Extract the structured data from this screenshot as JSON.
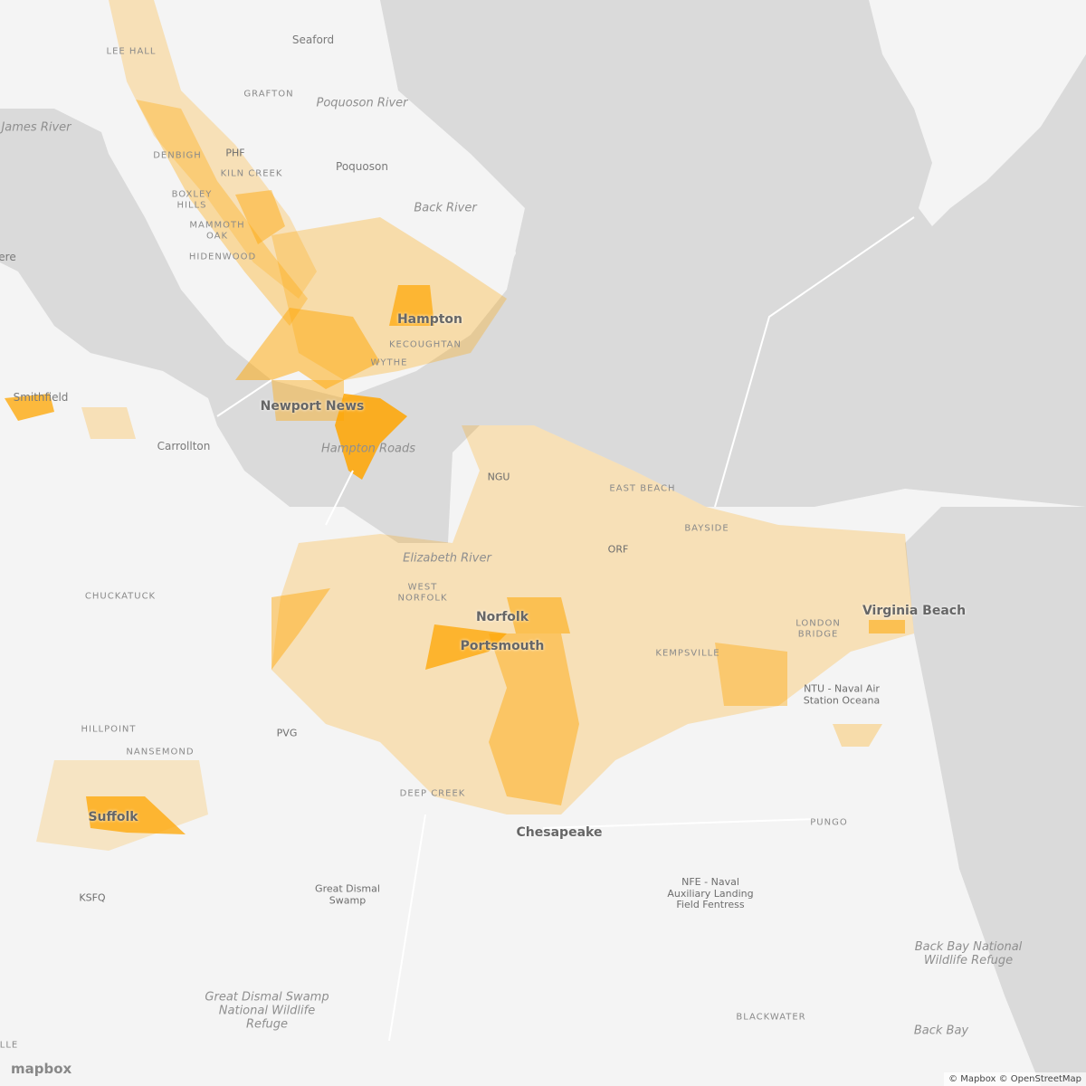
{
  "map": {
    "labels": [
      "LEE HALL",
      "Seaford",
      "GRAFTON",
      "Poquoson River",
      "James River",
      "PHF",
      "DENBIGH",
      "KILN CREEK",
      "Poquoson",
      "BOXLEY HILLS",
      "Back River",
      "MAMMOTH OAK",
      "HIDENWOOD",
      "ere",
      "Hampton",
      "KECOUGHTAN",
      "WYTHE",
      "Smithfield",
      "Newport News",
      "Carrollton",
      "Hampton Roads",
      "NGU",
      "EAST BEACH",
      "BAYSIDE",
      "ORF",
      "Elizabeth River",
      "WEST NORFOLK",
      "CHUCKATUCK",
      "Norfolk",
      "Portsmouth",
      "Virginia Beach",
      "LONDON BRIDGE",
      "KEMPSVILLE",
      "NTU - Naval Air Station Oceana",
      "HILLPOINT",
      "PVG",
      "NANSEMOND",
      "DEEP CREEK",
      "Suffolk",
      "PUNGO",
      "Chesapeake",
      "NFE - Naval Auxiliary Landing Field Fentress",
      "KSFQ",
      "Great Dismal Swamp",
      "Back Bay National Wildlife Refuge",
      "Great Dismal Swamp National Wildlife Refuge",
      "BLACKWATER",
      "Back Bay",
      "LLE"
    ],
    "logo": "mapbox",
    "attribution": "© Mapbox © OpenStreetMap"
  }
}
